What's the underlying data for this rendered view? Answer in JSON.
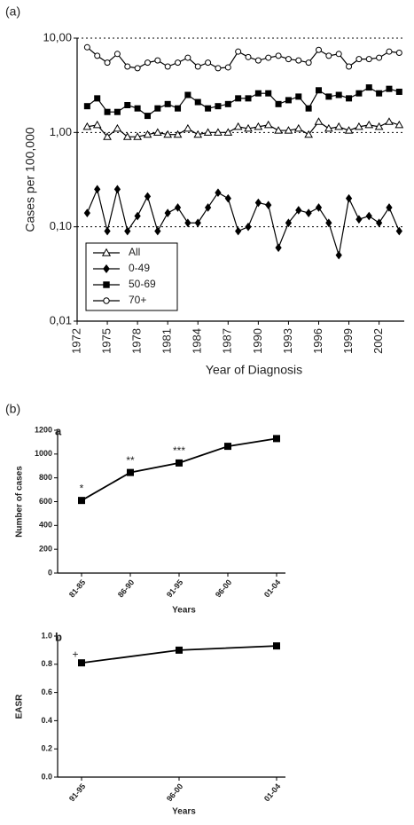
{
  "figure_labels": [
    "(a)",
    "(b)"
  ],
  "chart_data": [
    {
      "type": "line",
      "xlabel": "Year of Diagnosis",
      "ylabel": "Cases per 100,000",
      "x": [
        1973,
        1974,
        1975,
        1976,
        1977,
        1978,
        1979,
        1980,
        1981,
        1982,
        1983,
        1984,
        1985,
        1986,
        1987,
        1988,
        1989,
        1990,
        1991,
        1992,
        1993,
        1994,
        1995,
        1996,
        1997,
        1998,
        1999,
        2000,
        2001,
        2002,
        2003,
        2004
      ],
      "xlim": [
        1972,
        2004.5
      ],
      "xticks": [
        1972,
        1975,
        1978,
        1981,
        1984,
        1987,
        1990,
        1993,
        1996,
        1999,
        2002
      ],
      "ylim": [
        0.01,
        10
      ],
      "log_scale": true,
      "grid": true,
      "legend_position": "lower left",
      "yticks": [
        {
          "value": 10,
          "label": "10,00"
        },
        {
          "value": 1,
          "label": "1,00"
        },
        {
          "value": 0.1,
          "label": "0,10"
        },
        {
          "value": 0.01,
          "label": "0,01"
        }
      ],
      "series": [
        {
          "name": "All",
          "color": "#000000",
          "marker": "triangle",
          "values": [
            1.15,
            1.2,
            0.9,
            1.1,
            0.9,
            0.9,
            0.95,
            1.0,
            0.95,
            0.95,
            1.1,
            0.95,
            1.0,
            1.0,
            1.0,
            1.15,
            1.1,
            1.15,
            1.2,
            1.05,
            1.05,
            1.1,
            0.95,
            1.3,
            1.1,
            1.15,
            1.05,
            1.15,
            1.2,
            1.15,
            1.3,
            1.2
          ]
        },
        {
          "name": "0-49",
          "color": "#000000",
          "marker": "diamond",
          "values": [
            0.14,
            0.25,
            0.09,
            0.25,
            0.09,
            0.13,
            0.21,
            0.09,
            0.14,
            0.16,
            0.11,
            0.11,
            0.16,
            0.23,
            0.2,
            0.09,
            0.1,
            0.18,
            0.17,
            0.06,
            0.11,
            0.15,
            0.14,
            0.16,
            0.11,
            0.05,
            0.2,
            0.12,
            0.13,
            0.11,
            0.16,
            0.09
          ]
        },
        {
          "name": "50-69",
          "color": "#000000",
          "marker": "square",
          "values": [
            1.9,
            2.3,
            1.65,
            1.65,
            1.95,
            1.8,
            1.5,
            1.8,
            2.0,
            1.8,
            2.5,
            2.1,
            1.8,
            1.9,
            2.0,
            2.3,
            2.3,
            2.6,
            2.6,
            2.0,
            2.2,
            2.4,
            1.8,
            2.8,
            2.4,
            2.5,
            2.3,
            2.6,
            3.0,
            2.6,
            2.9,
            2.7
          ]
        },
        {
          "name": "70+",
          "color": "#000000",
          "marker": "circle",
          "values": [
            8.0,
            6.5,
            5.5,
            6.8,
            5.0,
            4.8,
            5.5,
            5.8,
            5.0,
            5.5,
            6.2,
            5.0,
            5.5,
            4.8,
            4.9,
            7.2,
            6.3,
            5.8,
            6.2,
            6.5,
            6.0,
            5.8,
            5.5,
            7.5,
            6.5,
            6.8,
            5.0,
            6.0,
            6.0,
            6.2,
            7.2,
            7.0
          ]
        }
      ]
    },
    {
      "type": "line",
      "panel": "a",
      "xlabel": "Years",
      "ylabel": "Number of cases",
      "categories": [
        "81-85",
        "86-90",
        "91-95",
        "96-00",
        "01-04"
      ],
      "values": [
        610,
        845,
        925,
        1065,
        1130
      ],
      "color": "#000000",
      "marker": "square",
      "annotations": [
        "*",
        "**",
        "***"
      ],
      "ylim": [
        0,
        1200
      ],
      "yticks": [
        0,
        200,
        400,
        600,
        800,
        1000,
        1200
      ]
    },
    {
      "type": "line",
      "panel": "b",
      "xlabel": "Years",
      "ylabel": "EASR",
      "categories": [
        "91-95",
        "96-00",
        "01-04"
      ],
      "values": [
        0.81,
        0.9,
        0.93
      ],
      "color": "#000000",
      "marker": "square",
      "annotations": [
        "+"
      ],
      "ylim": [
        0,
        1.0
      ],
      "yticks": [
        {
          "value": 0,
          "label": "0.0"
        },
        0.2,
        0.4,
        0.6,
        0.8,
        {
          "value": 1,
          "label": "1.0"
        }
      ]
    }
  ]
}
